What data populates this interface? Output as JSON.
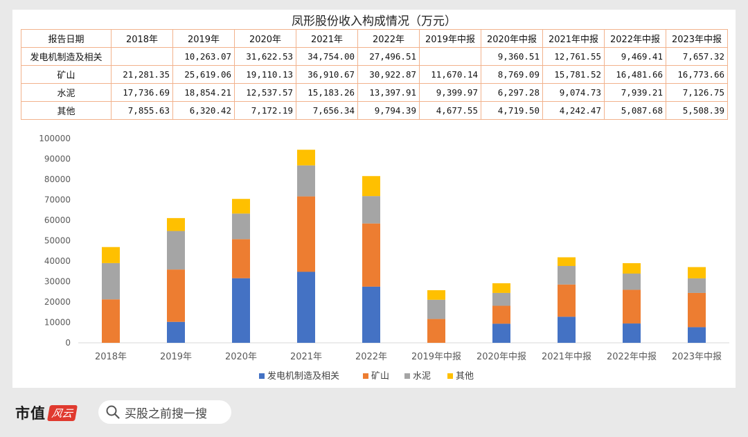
{
  "title": "凤形股份收入构成情况（万元）",
  "table": {
    "header_label": "报告日期",
    "columns": [
      "2018年",
      "2019年",
      "2020年",
      "2021年",
      "2022年",
      "2019年中报",
      "2020年中报",
      "2021年中报",
      "2022年中报",
      "2023年中报"
    ],
    "rows": [
      {
        "label": "发电机制造及相关",
        "cells": [
          "",
          "10,263.07",
          "31,622.53",
          "34,754.00",
          "27,496.51",
          "",
          "9,360.51",
          "12,761.55",
          "9,469.41",
          "7,657.32"
        ]
      },
      {
        "label": "矿山",
        "cells": [
          "21,281.35",
          "25,619.06",
          "19,110.13",
          "36,910.67",
          "30,922.87",
          "11,670.14",
          "8,769.09",
          "15,781.52",
          "16,481.66",
          "16,773.66"
        ]
      },
      {
        "label": "水泥",
        "cells": [
          "17,736.69",
          "18,854.21",
          "12,537.57",
          "15,183.26",
          "13,397.91",
          "9,399.97",
          "6,297.28",
          "9,074.73",
          "7,939.21",
          "7,126.75"
        ]
      },
      {
        "label": "其他",
        "cells": [
          "7,855.63",
          "6,320.42",
          "7,172.19",
          "7,656.34",
          "9,794.39",
          "4,677.55",
          "4,719.50",
          "4,242.47",
          "5,087.68",
          "5,508.39"
        ]
      }
    ]
  },
  "chart_data": {
    "type": "bar",
    "stacked": true,
    "categories": [
      "2018年",
      "2019年",
      "2020年",
      "2021年",
      "2022年",
      "2019年中报",
      "2020年中报",
      "2021年中报",
      "2022年中报",
      "2023年中报"
    ],
    "series": [
      {
        "name": "发电机制造及相关",
        "color": "#4472c4",
        "values": [
          0,
          10263.07,
          31622.53,
          34754.0,
          27496.51,
          0,
          9360.51,
          12761.55,
          9469.41,
          7657.32
        ]
      },
      {
        "name": "矿山",
        "color": "#ed7d31",
        "values": [
          21281.35,
          25619.06,
          19110.13,
          36910.67,
          30922.87,
          11670.14,
          8769.09,
          15781.52,
          16481.66,
          16773.66
        ]
      },
      {
        "name": "水泥",
        "color": "#a5a5a5",
        "values": [
          17736.69,
          18854.21,
          12537.57,
          15183.26,
          13397.91,
          9399.97,
          6297.28,
          9074.73,
          7939.21,
          7126.75
        ]
      },
      {
        "name": "其他",
        "color": "#ffc000",
        "values": [
          7855.63,
          6320.42,
          7172.19,
          7656.34,
          9794.39,
          4677.55,
          4719.5,
          4242.47,
          5087.68,
          5508.39
        ]
      }
    ],
    "ylim": [
      0,
      100000
    ],
    "yticks": [
      0,
      10000,
      20000,
      30000,
      40000,
      50000,
      60000,
      70000,
      80000,
      90000,
      100000
    ],
    "ytick_labels": [
      "0",
      "10000",
      "20000",
      "30000",
      "40000",
      "50000",
      "60000",
      "70000",
      "80000",
      "90000",
      "100000"
    ],
    "grid": false,
    "legend_position": "bottom"
  },
  "footer": {
    "logo_text": "市值",
    "logo_script": "风云",
    "search_placeholder": "买股之前搜一搜",
    "search_icon": "search-icon"
  },
  "watermark": "市值风云"
}
